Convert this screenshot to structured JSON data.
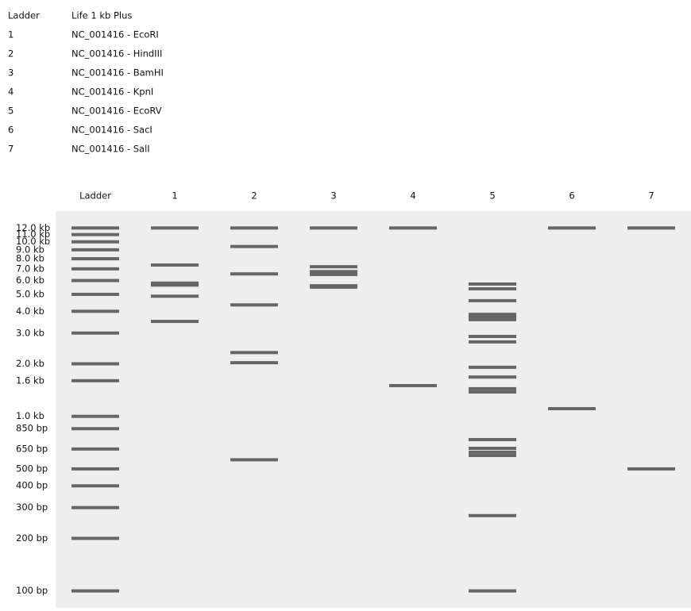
{
  "legend": {
    "rows": [
      [
        "Ladder",
        "Life 1 kb Plus"
      ],
      [
        "1",
        "NC_001416 - EcoRI"
      ],
      [
        "2",
        "NC_001416 - HindIII"
      ],
      [
        "3",
        "NC_001416 - BamHI"
      ],
      [
        "4",
        "NC_001416 - KpnI"
      ],
      [
        "5",
        "NC_001416 - EcoRV"
      ],
      [
        "6",
        "NC_001416 - SacI"
      ],
      [
        "7",
        "NC_001416 - SalI"
      ]
    ]
  },
  "gel": {
    "log_scale": true,
    "ylim": [
      15000,
      80
    ],
    "band_color": "#666666",
    "background": "#eeeeee",
    "ladder_labels": [
      {
        "value": 12000,
        "label": "12.0 kb"
      },
      {
        "value": 11000,
        "label": "11.0 kb"
      },
      {
        "value": 10000,
        "label": "10.0 kb"
      },
      {
        "value": 9000,
        "label": "9.0 kb"
      },
      {
        "value": 8000,
        "label": "8.0 kb"
      },
      {
        "value": 7000,
        "label": "7.0 kb"
      },
      {
        "value": 6000,
        "label": "6.0 kb"
      },
      {
        "value": 5000,
        "label": "5.0 kb"
      },
      {
        "value": 4000,
        "label": "4.0 kb"
      },
      {
        "value": 3000,
        "label": "3.0 kb"
      },
      {
        "value": 2000,
        "label": "2.0 kb"
      },
      {
        "value": 1600,
        "label": "1.6 kb"
      },
      {
        "value": 1000,
        "label": "1.0 kb"
      },
      {
        "value": 850,
        "label": "850 bp"
      },
      {
        "value": 650,
        "label": "650 bp"
      },
      {
        "value": 500,
        "label": "500 bp"
      },
      {
        "value": 400,
        "label": "400 bp"
      },
      {
        "value": 300,
        "label": "300 bp"
      },
      {
        "value": 200,
        "label": "200 bp"
      },
      {
        "value": 100,
        "label": "100 bp"
      }
    ],
    "lanes": [
      {
        "name": "Ladder",
        "bands": [
          12000,
          11000,
          10000,
          9000,
          8000,
          7000,
          6000,
          5000,
          4000,
          3000,
          2000,
          1600,
          1000,
          850,
          650,
          500,
          400,
          300,
          200,
          100
        ]
      },
      {
        "name": "1",
        "bands": [
          12000,
          7360,
          5800,
          5650,
          4880,
          3500
        ]
      },
      {
        "name": "2",
        "bands": [
          12000,
          9400,
          6550,
          4350,
          2320,
          2030,
          564
        ]
      },
      {
        "name": "3",
        "bands": [
          12000,
          7200,
          6750,
          6500,
          5600,
          5500
        ]
      },
      {
        "name": "4",
        "bands": [
          12000,
          1500
        ]
      },
      {
        "name": "5",
        "bands": [
          5730,
          5380,
          4600,
          3840,
          3690,
          3580,
          2870,
          2670,
          1910,
          1680,
          1440,
          1380,
          736,
          656,
          623,
          597,
          270,
          100
        ]
      },
      {
        "name": "6",
        "bands": [
          12000,
          1107
        ]
      },
      {
        "name": "7",
        "bands": [
          12000,
          500
        ]
      }
    ]
  }
}
